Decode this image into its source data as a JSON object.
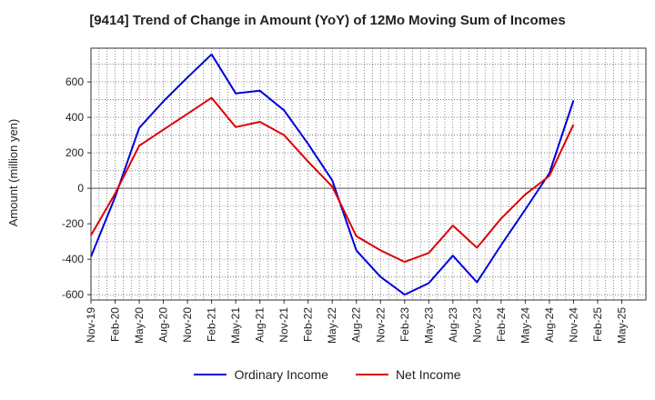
{
  "chart_data": {
    "type": "line",
    "title": "[9414]  Trend of Change in Amount (YoY) of 12Mo Moving Sum of Incomes",
    "ylabel": "Amount (million yen)",
    "xlabel": "",
    "ylim": [
      -630,
      790
    ],
    "yticks": [
      -600,
      -400,
      -200,
      0,
      200,
      400,
      600
    ],
    "x_labels": [
      "Nov-19",
      "Feb-20",
      "May-20",
      "Aug-20",
      "Nov-20",
      "Feb-21",
      "May-21",
      "Aug-21",
      "Nov-21",
      "Feb-22",
      "May-22",
      "Aug-22",
      "Nov-22",
      "Feb-23",
      "May-23",
      "Aug-23",
      "Nov-23",
      "Feb-24",
      "May-24",
      "Aug-24",
      "Nov-24",
      "Feb-25",
      "May-25"
    ],
    "grid": true,
    "legend_position": "bottom",
    "series": [
      {
        "name": "Ordinary Income",
        "color": "#0000dd",
        "values": [
          -385,
          -50,
          340,
          490,
          625,
          755,
          535,
          550,
          440,
          250,
          45,
          -350,
          -500,
          -600,
          -535,
          -380,
          -530,
          -320,
          -120,
          85,
          495,
          null,
          null
        ]
      },
      {
        "name": "Net Income",
        "color": "#dd0000",
        "values": [
          -265,
          -30,
          240,
          330,
          420,
          510,
          345,
          375,
          300,
          150,
          10,
          -270,
          -350,
          -415,
          -365,
          -210,
          -335,
          -170,
          -35,
          70,
          360,
          null,
          null
        ]
      }
    ]
  }
}
